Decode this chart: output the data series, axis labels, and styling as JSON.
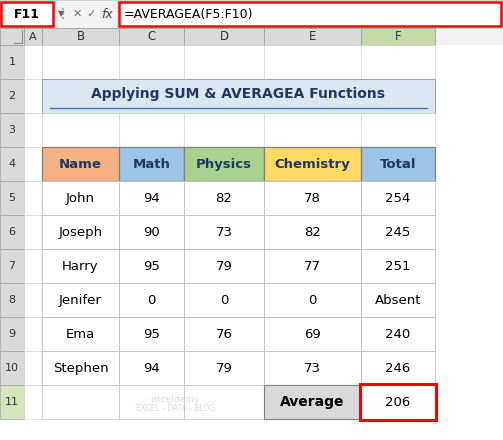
{
  "title": "Applying SUM & AVERAGEA Functions",
  "formula_bar_cell": "F11",
  "formula_bar_formula": "=AVERAGEA(F5:F10)",
  "col_headers": [
    "A",
    "B",
    "C",
    "D",
    "E",
    "F"
  ],
  "table_headers": [
    "Name",
    "Math",
    "Physics",
    "Chemistry",
    "Total"
  ],
  "header_colors": [
    "#F4B183",
    "#9DC3E6",
    "#A9D18E",
    "#FFD966",
    "#9DC3E6"
  ],
  "rows": [
    [
      "John",
      "94",
      "82",
      "78",
      "254"
    ],
    [
      "Joseph",
      "90",
      "73",
      "82",
      "245"
    ],
    [
      "Harry",
      "95",
      "79",
      "77",
      "251"
    ],
    [
      "Jenifer",
      "0",
      "0",
      "0",
      "Absent"
    ],
    [
      "Ema",
      "95",
      "76",
      "69",
      "240"
    ],
    [
      "Stephen",
      "94",
      "79",
      "73",
      "246"
    ]
  ],
  "bottom_label": "Average",
  "bottom_value": "206",
  "title_color": "#1F3864",
  "title_bg": "#DCE6F1",
  "underline_color": "#4472C4",
  "grid_color": "#BFBFBF",
  "row_num_bg": "#D9D9D9",
  "col_hdr_bg": "#D9D9D9",
  "col_F_hdr_bg": "#375623",
  "col_F_hdr_fc": "#FFFFFF",
  "watermark_line1": "exceldemy",
  "watermark_line2": "EXCEL - DATA - BLOG",
  "bg_color": "#FFFFFF",
  "outer_bg": "#F2F2F2",
  "formula_bg": "#FFFFFF",
  "red_border": "#FF0000",
  "green_border": "#375623",
  "avg_cell_bg": "#D9D9D9"
}
